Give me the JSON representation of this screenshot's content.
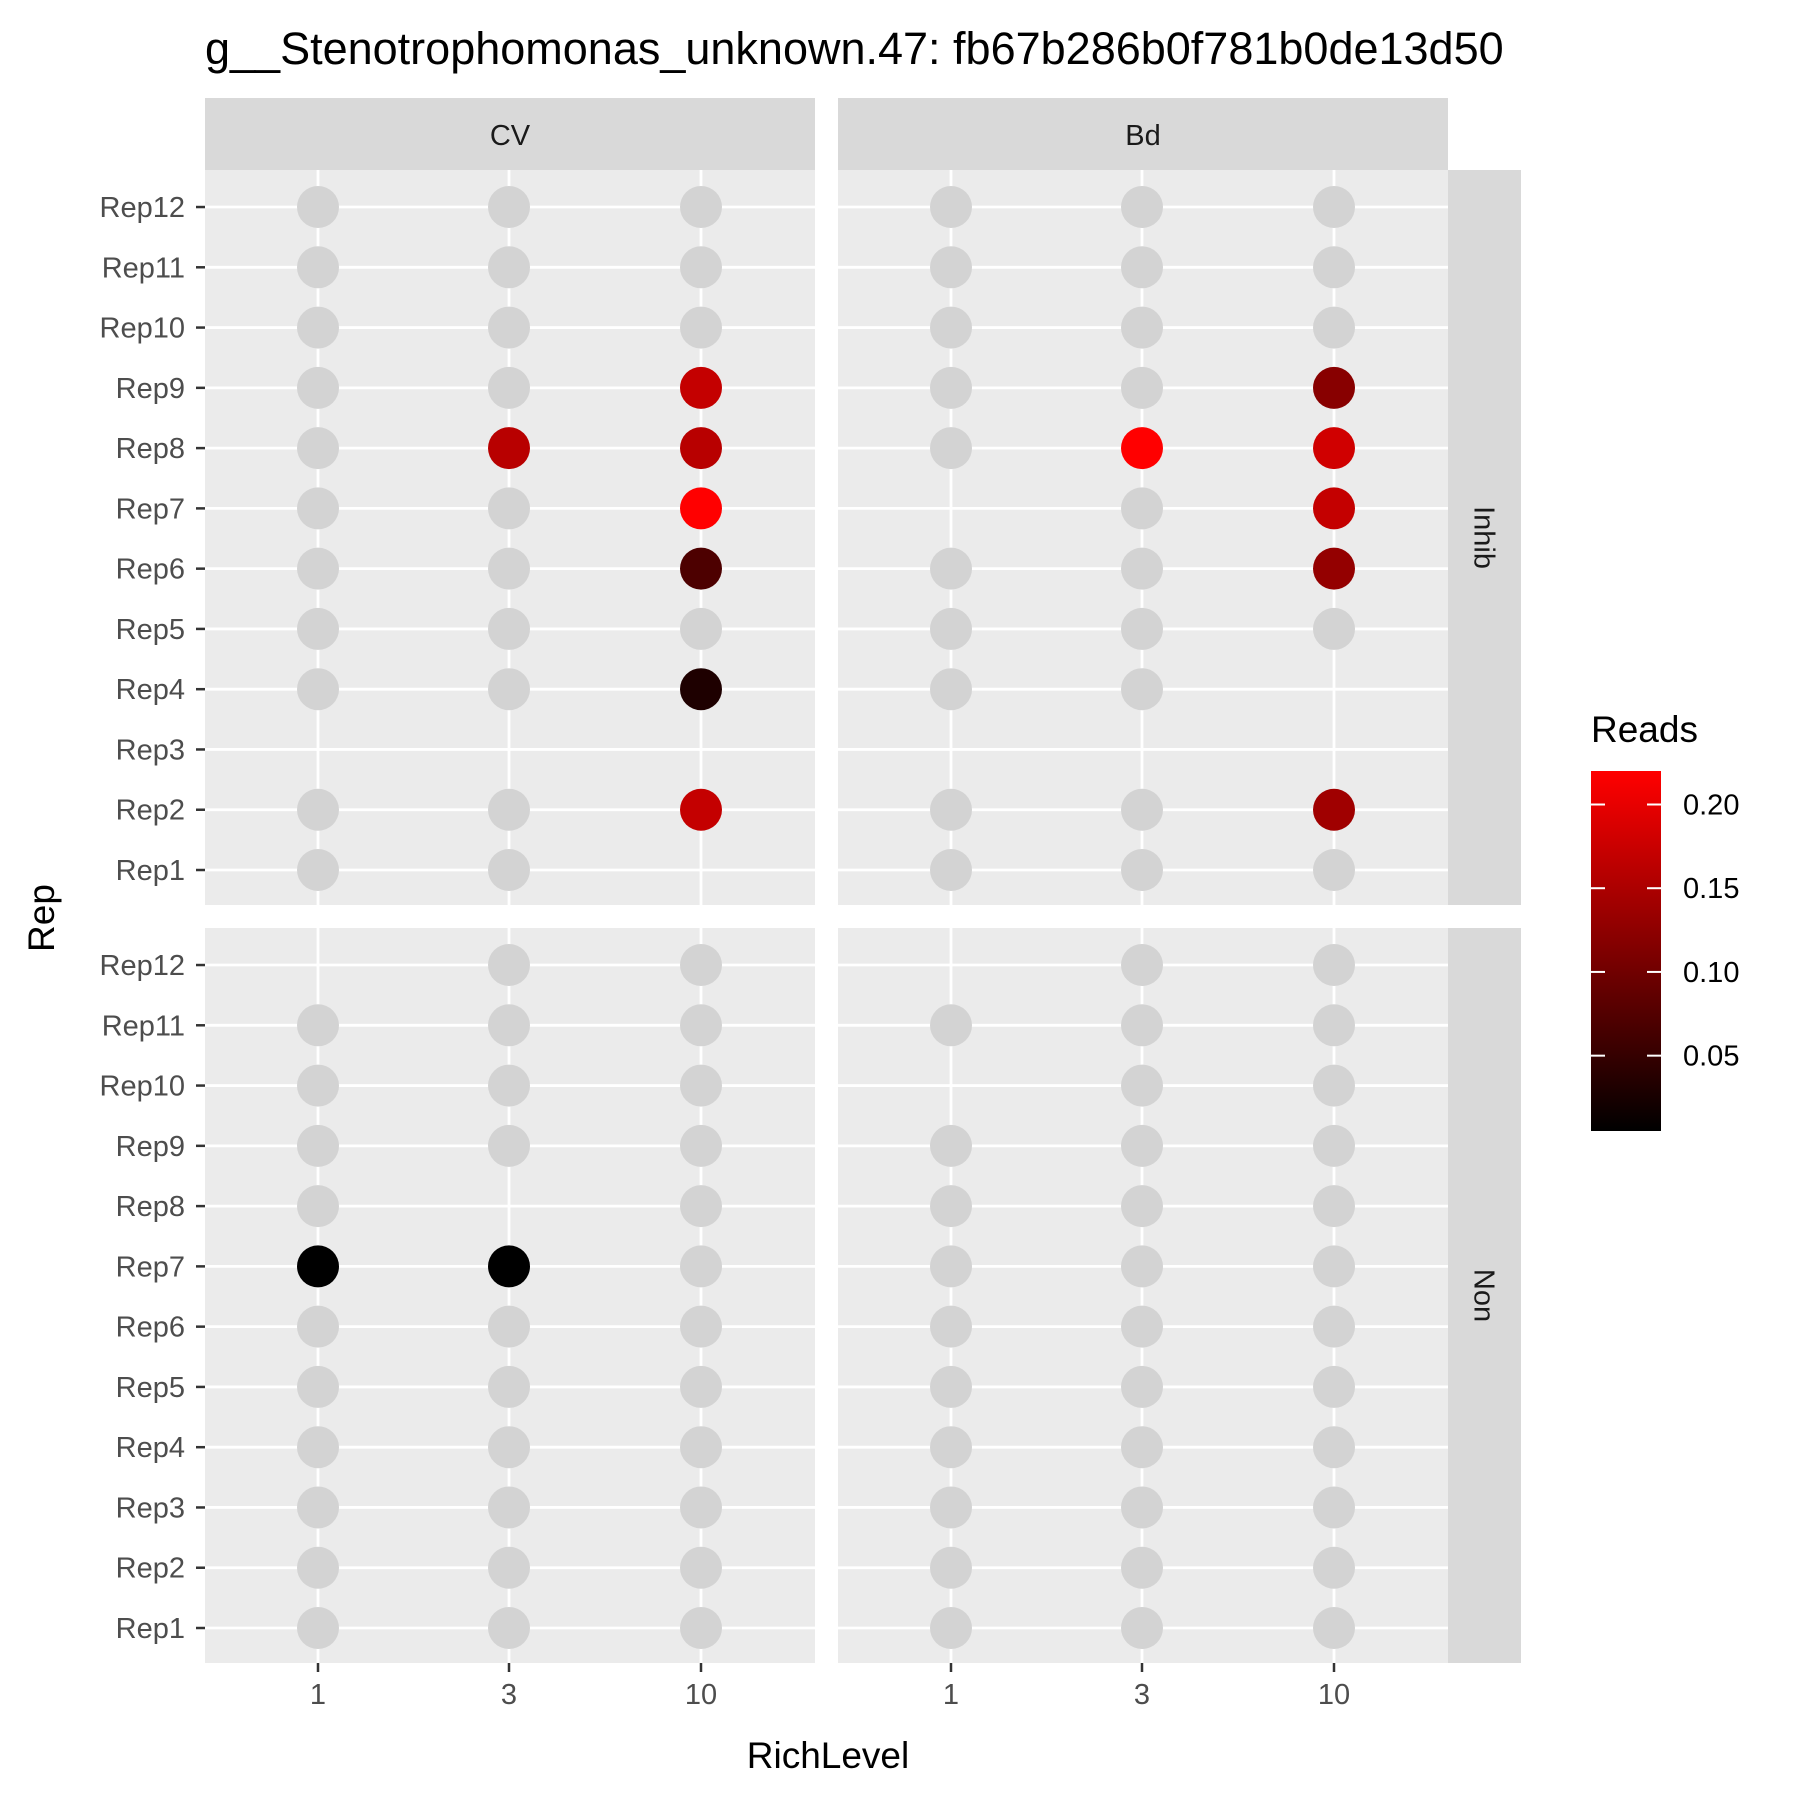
{
  "chart_data": {
    "type": "scatter",
    "title": "g__Stenotrophomonas_unknown.47: fb67b286b0f781b0de13d50",
    "xlabel": "RichLevel",
    "ylabel": "Rep",
    "x_categories": [
      "1",
      "3",
      "10"
    ],
    "y_categories": [
      "Rep1",
      "Rep2",
      "Rep3",
      "Rep4",
      "Rep5",
      "Rep6",
      "Rep7",
      "Rep8",
      "Rep9",
      "Rep10",
      "Rep11",
      "Rep12"
    ],
    "facet_columns": [
      "CV",
      "Bd"
    ],
    "facet_rows": [
      "Inhib",
      "Non"
    ],
    "legend": {
      "title": "Reads",
      "placement": "right",
      "range": [
        0.005,
        0.22
      ],
      "ticks": [
        0.05,
        0.1,
        0.15,
        0.2
      ],
      "tick_labels": [
        "0.05",
        "0.10",
        "0.15",
        "0.20"
      ],
      "color_low": "#000000",
      "color_high": "#ff0000"
    },
    "zero_color": "#d3d3d3",
    "grid": true,
    "panels": [
      {
        "col": "CV",
        "row": "Inhib",
        "points": [
          {
            "x": "1",
            "rep": "Rep1",
            "reads": 0
          },
          {
            "x": "1",
            "rep": "Rep2",
            "reads": 0
          },
          {
            "x": "1",
            "rep": "Rep4",
            "reads": 0
          },
          {
            "x": "1",
            "rep": "Rep5",
            "reads": 0
          },
          {
            "x": "1",
            "rep": "Rep6",
            "reads": 0
          },
          {
            "x": "1",
            "rep": "Rep7",
            "reads": 0
          },
          {
            "x": "1",
            "rep": "Rep8",
            "reads": 0
          },
          {
            "x": "1",
            "rep": "Rep9",
            "reads": 0
          },
          {
            "x": "1",
            "rep": "Rep10",
            "reads": 0
          },
          {
            "x": "1",
            "rep": "Rep11",
            "reads": 0
          },
          {
            "x": "1",
            "rep": "Rep12",
            "reads": 0
          },
          {
            "x": "3",
            "rep": "Rep1",
            "reads": 0
          },
          {
            "x": "3",
            "rep": "Rep2",
            "reads": 0
          },
          {
            "x": "3",
            "rep": "Rep4",
            "reads": 0
          },
          {
            "x": "3",
            "rep": "Rep5",
            "reads": 0
          },
          {
            "x": "3",
            "rep": "Rep6",
            "reads": 0
          },
          {
            "x": "3",
            "rep": "Rep7",
            "reads": 0
          },
          {
            "x": "3",
            "rep": "Rep8",
            "reads": 0.16
          },
          {
            "x": "3",
            "rep": "Rep9",
            "reads": 0
          },
          {
            "x": "3",
            "rep": "Rep10",
            "reads": 0
          },
          {
            "x": "3",
            "rep": "Rep11",
            "reads": 0
          },
          {
            "x": "3",
            "rep": "Rep12",
            "reads": 0
          },
          {
            "x": "10",
            "rep": "Rep2",
            "reads": 0.17
          },
          {
            "x": "10",
            "rep": "Rep4",
            "reads": 0.03
          },
          {
            "x": "10",
            "rep": "Rep5",
            "reads": 0
          },
          {
            "x": "10",
            "rep": "Rep6",
            "reads": 0.07
          },
          {
            "x": "10",
            "rep": "Rep7",
            "reads": 0.22
          },
          {
            "x": "10",
            "rep": "Rep8",
            "reads": 0.16
          },
          {
            "x": "10",
            "rep": "Rep9",
            "reads": 0.17
          },
          {
            "x": "10",
            "rep": "Rep10",
            "reads": 0
          },
          {
            "x": "10",
            "rep": "Rep11",
            "reads": 0
          },
          {
            "x": "10",
            "rep": "Rep12",
            "reads": 0
          }
        ]
      },
      {
        "col": "Bd",
        "row": "Inhib",
        "points": [
          {
            "x": "1",
            "rep": "Rep1",
            "reads": 0
          },
          {
            "x": "1",
            "rep": "Rep2",
            "reads": 0
          },
          {
            "x": "1",
            "rep": "Rep4",
            "reads": 0
          },
          {
            "x": "1",
            "rep": "Rep5",
            "reads": 0
          },
          {
            "x": "1",
            "rep": "Rep6",
            "reads": 0
          },
          {
            "x": "1",
            "rep": "Rep8",
            "reads": 0
          },
          {
            "x": "1",
            "rep": "Rep9",
            "reads": 0
          },
          {
            "x": "1",
            "rep": "Rep10",
            "reads": 0
          },
          {
            "x": "1",
            "rep": "Rep11",
            "reads": 0
          },
          {
            "x": "1",
            "rep": "Rep12",
            "reads": 0
          },
          {
            "x": "3",
            "rep": "Rep1",
            "reads": 0
          },
          {
            "x": "3",
            "rep": "Rep2",
            "reads": 0
          },
          {
            "x": "3",
            "rep": "Rep4",
            "reads": 0
          },
          {
            "x": "3",
            "rep": "Rep5",
            "reads": 0
          },
          {
            "x": "3",
            "rep": "Rep6",
            "reads": 0
          },
          {
            "x": "3",
            "rep": "Rep7",
            "reads": 0
          },
          {
            "x": "3",
            "rep": "Rep8",
            "reads": 0.22
          },
          {
            "x": "3",
            "rep": "Rep9",
            "reads": 0
          },
          {
            "x": "3",
            "rep": "Rep10",
            "reads": 0
          },
          {
            "x": "3",
            "rep": "Rep11",
            "reads": 0
          },
          {
            "x": "3",
            "rep": "Rep12",
            "reads": 0
          },
          {
            "x": "10",
            "rep": "Rep1",
            "reads": 0
          },
          {
            "x": "10",
            "rep": "Rep2",
            "reads": 0.14
          },
          {
            "x": "10",
            "rep": "Rep5",
            "reads": 0
          },
          {
            "x": "10",
            "rep": "Rep6",
            "reads": 0.13
          },
          {
            "x": "10",
            "rep": "Rep7",
            "reads": 0.17
          },
          {
            "x": "10",
            "rep": "Rep8",
            "reads": 0.18
          },
          {
            "x": "10",
            "rep": "Rep9",
            "reads": 0.12
          },
          {
            "x": "10",
            "rep": "Rep10",
            "reads": 0
          },
          {
            "x": "10",
            "rep": "Rep11",
            "reads": 0
          },
          {
            "x": "10",
            "rep": "Rep12",
            "reads": 0
          }
        ]
      },
      {
        "col": "CV",
        "row": "Non",
        "points": [
          {
            "x": "1",
            "rep": "Rep1",
            "reads": 0
          },
          {
            "x": "1",
            "rep": "Rep2",
            "reads": 0
          },
          {
            "x": "1",
            "rep": "Rep3",
            "reads": 0
          },
          {
            "x": "1",
            "rep": "Rep4",
            "reads": 0
          },
          {
            "x": "1",
            "rep": "Rep5",
            "reads": 0
          },
          {
            "x": "1",
            "rep": "Rep6",
            "reads": 0
          },
          {
            "x": "1",
            "rep": "Rep7",
            "reads": 0.005
          },
          {
            "x": "1",
            "rep": "Rep8",
            "reads": 0
          },
          {
            "x": "1",
            "rep": "Rep9",
            "reads": 0
          },
          {
            "x": "1",
            "rep": "Rep10",
            "reads": 0
          },
          {
            "x": "1",
            "rep": "Rep11",
            "reads": 0
          },
          {
            "x": "3",
            "rep": "Rep1",
            "reads": 0
          },
          {
            "x": "3",
            "rep": "Rep2",
            "reads": 0
          },
          {
            "x": "3",
            "rep": "Rep3",
            "reads": 0
          },
          {
            "x": "3",
            "rep": "Rep4",
            "reads": 0
          },
          {
            "x": "3",
            "rep": "Rep5",
            "reads": 0
          },
          {
            "x": "3",
            "rep": "Rep6",
            "reads": 0
          },
          {
            "x": "3",
            "rep": "Rep7",
            "reads": 0.005
          },
          {
            "x": "3",
            "rep": "Rep9",
            "reads": 0
          },
          {
            "x": "3",
            "rep": "Rep10",
            "reads": 0
          },
          {
            "x": "3",
            "rep": "Rep11",
            "reads": 0
          },
          {
            "x": "3",
            "rep": "Rep12",
            "reads": 0
          },
          {
            "x": "10",
            "rep": "Rep1",
            "reads": 0
          },
          {
            "x": "10",
            "rep": "Rep2",
            "reads": 0
          },
          {
            "x": "10",
            "rep": "Rep3",
            "reads": 0
          },
          {
            "x": "10",
            "rep": "Rep4",
            "reads": 0
          },
          {
            "x": "10",
            "rep": "Rep5",
            "reads": 0
          },
          {
            "x": "10",
            "rep": "Rep6",
            "reads": 0
          },
          {
            "x": "10",
            "rep": "Rep7",
            "reads": 0
          },
          {
            "x": "10",
            "rep": "Rep8",
            "reads": 0
          },
          {
            "x": "10",
            "rep": "Rep9",
            "reads": 0
          },
          {
            "x": "10",
            "rep": "Rep10",
            "reads": 0
          },
          {
            "x": "10",
            "rep": "Rep11",
            "reads": 0
          },
          {
            "x": "10",
            "rep": "Rep12",
            "reads": 0
          }
        ]
      },
      {
        "col": "Bd",
        "row": "Non",
        "points": [
          {
            "x": "1",
            "rep": "Rep1",
            "reads": 0
          },
          {
            "x": "1",
            "rep": "Rep2",
            "reads": 0
          },
          {
            "x": "1",
            "rep": "Rep3",
            "reads": 0
          },
          {
            "x": "1",
            "rep": "Rep4",
            "reads": 0
          },
          {
            "x": "1",
            "rep": "Rep5",
            "reads": 0
          },
          {
            "x": "1",
            "rep": "Rep6",
            "reads": 0
          },
          {
            "x": "1",
            "rep": "Rep7",
            "reads": 0
          },
          {
            "x": "1",
            "rep": "Rep8",
            "reads": 0
          },
          {
            "x": "1",
            "rep": "Rep9",
            "reads": 0
          },
          {
            "x": "1",
            "rep": "Rep11",
            "reads": 0
          },
          {
            "x": "3",
            "rep": "Rep1",
            "reads": 0
          },
          {
            "x": "3",
            "rep": "Rep2",
            "reads": 0
          },
          {
            "x": "3",
            "rep": "Rep3",
            "reads": 0
          },
          {
            "x": "3",
            "rep": "Rep4",
            "reads": 0
          },
          {
            "x": "3",
            "rep": "Rep5",
            "reads": 0
          },
          {
            "x": "3",
            "rep": "Rep6",
            "reads": 0
          },
          {
            "x": "3",
            "rep": "Rep7",
            "reads": 0
          },
          {
            "x": "3",
            "rep": "Rep8",
            "reads": 0
          },
          {
            "x": "3",
            "rep": "Rep9",
            "reads": 0
          },
          {
            "x": "3",
            "rep": "Rep10",
            "reads": 0
          },
          {
            "x": "3",
            "rep": "Rep11",
            "reads": 0
          },
          {
            "x": "3",
            "rep": "Rep12",
            "reads": 0
          },
          {
            "x": "10",
            "rep": "Rep1",
            "reads": 0
          },
          {
            "x": "10",
            "rep": "Rep2",
            "reads": 0
          },
          {
            "x": "10",
            "rep": "Rep3",
            "reads": 0
          },
          {
            "x": "10",
            "rep": "Rep4",
            "reads": 0
          },
          {
            "x": "10",
            "rep": "Rep5",
            "reads": 0
          },
          {
            "x": "10",
            "rep": "Rep6",
            "reads": 0
          },
          {
            "x": "10",
            "rep": "Rep7",
            "reads": 0
          },
          {
            "x": "10",
            "rep": "Rep8",
            "reads": 0
          },
          {
            "x": "10",
            "rep": "Rep9",
            "reads": 0
          },
          {
            "x": "10",
            "rep": "Rep10",
            "reads": 0
          },
          {
            "x": "10",
            "rep": "Rep11",
            "reads": 0
          },
          {
            "x": "10",
            "rep": "Rep12",
            "reads": 0
          }
        ]
      }
    ]
  }
}
